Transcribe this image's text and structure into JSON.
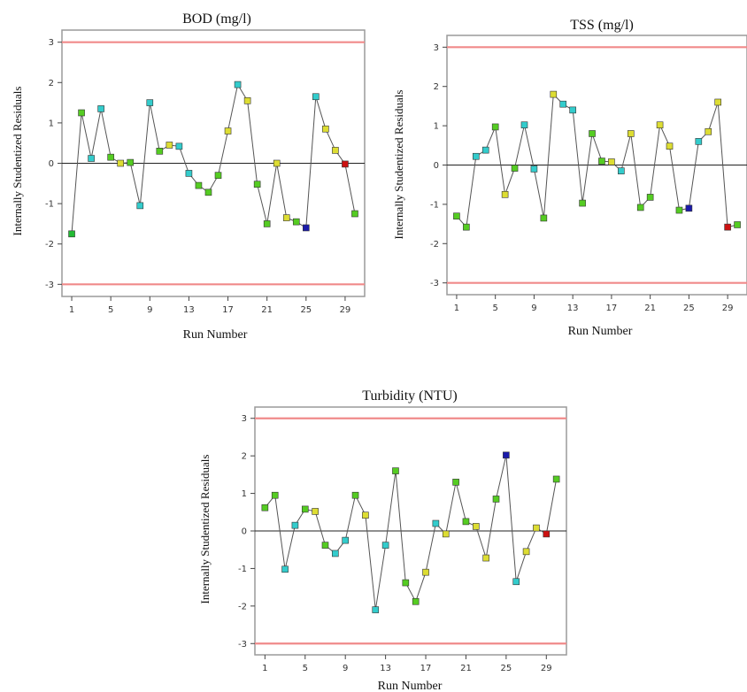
{
  "chart_data": [
    {
      "type": "scatter",
      "title": "BOD (mg/l)",
      "xlabel": "Run Number",
      "ylabel": "Internally Studentized Residuals",
      "xticks": [
        1,
        5,
        9,
        13,
        17,
        21,
        25,
        29
      ],
      "yticks": [
        -3,
        -2,
        -1,
        0,
        1,
        2,
        3
      ],
      "xlim": [
        0,
        31
      ],
      "ylim": [
        -3.3,
        3.3
      ],
      "reference_lines": [
        3,
        -3
      ],
      "x": [
        1,
        2,
        3,
        4,
        5,
        6,
        7,
        8,
        9,
        10,
        11,
        12,
        13,
        14,
        15,
        16,
        17,
        18,
        19,
        20,
        21,
        22,
        23,
        24,
        25,
        26,
        27,
        28,
        29,
        30
      ],
      "y": [
        -1.75,
        1.25,
        0.12,
        1.35,
        0.15,
        0.0,
        0.02,
        -1.05,
        1.5,
        0.3,
        0.45,
        0.42,
        -0.25,
        -0.55,
        -0.72,
        -0.3,
        0.8,
        1.95,
        1.55,
        -0.52,
        -1.5,
        0.0,
        -1.35,
        -1.45,
        -1.6,
        1.65,
        0.85,
        0.32,
        -0.02,
        -1.25
      ],
      "colors": [
        "#22bb33",
        "#55cc22",
        "#33cccc",
        "#33cccc",
        "#55cc22",
        "#dddd33",
        "#55cc22",
        "#33cccc",
        "#33cccc",
        "#55cc22",
        "#dddd33",
        "#33cccc",
        "#33cccc",
        "#55cc22",
        "#55cc22",
        "#55cc22",
        "#dddd33",
        "#33cccc",
        "#dddd33",
        "#55cc22",
        "#55cc22",
        "#dddd33",
        "#dddd33",
        "#55cc22",
        "#1a1aaa",
        "#33cccc",
        "#dddd33",
        "#dddd33",
        "#cc1111",
        "#55cc22"
      ]
    },
    {
      "type": "scatter",
      "title": "TSS (mg/l)",
      "xlabel": "Run Number",
      "ylabel": "Internally Studentized Residuals",
      "xticks": [
        1,
        5,
        9,
        13,
        17,
        21,
        25,
        29
      ],
      "yticks": [
        -3,
        -2,
        -1,
        0,
        1,
        2,
        3
      ],
      "xlim": [
        0,
        31
      ],
      "ylim": [
        -3.3,
        3.3
      ],
      "reference_lines": [
        3,
        -3
      ],
      "x": [
        1,
        2,
        3,
        4,
        5,
        6,
        7,
        8,
        9,
        10,
        11,
        12,
        13,
        14,
        15,
        16,
        17,
        18,
        19,
        20,
        21,
        22,
        23,
        24,
        25,
        26,
        27,
        28,
        29,
        30
      ],
      "y": [
        -1.3,
        -1.58,
        0.22,
        0.38,
        0.97,
        -0.75,
        -0.08,
        1.02,
        -0.1,
        -1.35,
        1.8,
        1.55,
        1.4,
        -0.97,
        0.8,
        0.1,
        0.08,
        -0.15,
        0.8,
        -1.08,
        -0.82,
        1.02,
        0.48,
        -1.15,
        -1.1,
        0.6,
        0.85,
        1.6,
        -1.58,
        -1.52
      ],
      "colors": [
        "#55cc22",
        "#55cc22",
        "#33cccc",
        "#33cccc",
        "#55cc22",
        "#dddd33",
        "#55cc22",
        "#33cccc",
        "#33cccc",
        "#55cc22",
        "#dddd33",
        "#33cccc",
        "#33cccc",
        "#55cc22",
        "#55cc22",
        "#55cc22",
        "#dddd33",
        "#33cccc",
        "#dddd33",
        "#55cc22",
        "#55cc22",
        "#dddd33",
        "#dddd33",
        "#55cc22",
        "#1a1aaa",
        "#33cccc",
        "#dddd33",
        "#dddd33",
        "#cc1111",
        "#55cc22"
      ]
    },
    {
      "type": "scatter",
      "title": "Turbidity (NTU)",
      "xlabel": "Run Number",
      "ylabel": "Internally Studentized Residuals",
      "xticks": [
        1,
        5,
        9,
        13,
        17,
        21,
        25,
        29
      ],
      "yticks": [
        -3,
        -2,
        -1,
        0,
        1,
        2,
        3
      ],
      "xlim": [
        0,
        31
      ],
      "ylim": [
        -3.3,
        3.3
      ],
      "reference_lines": [
        3,
        -3
      ],
      "x": [
        1,
        2,
        3,
        4,
        5,
        6,
        7,
        8,
        9,
        10,
        11,
        12,
        13,
        14,
        15,
        16,
        17,
        18,
        19,
        20,
        21,
        22,
        23,
        24,
        25,
        26,
        27,
        28,
        29,
        30
      ],
      "y": [
        0.62,
        0.95,
        -1.02,
        0.15,
        0.58,
        0.52,
        -0.38,
        -0.6,
        -0.25,
        0.95,
        0.42,
        -2.1,
        -0.38,
        1.6,
        -1.38,
        -1.88,
        -1.1,
        0.2,
        -0.08,
        1.3,
        0.25,
        0.12,
        -0.72,
        0.85,
        2.02,
        -1.35,
        -0.55,
        0.08,
        -0.08,
        1.38
      ],
      "colors": [
        "#55cc22",
        "#55cc22",
        "#33cccc",
        "#33cccc",
        "#55cc22",
        "#dddd33",
        "#55cc22",
        "#33cccc",
        "#33cccc",
        "#55cc22",
        "#dddd33",
        "#33cccc",
        "#33cccc",
        "#55cc22",
        "#55cc22",
        "#55cc22",
        "#dddd33",
        "#33cccc",
        "#dddd33",
        "#55cc22",
        "#55cc22",
        "#dddd33",
        "#dddd33",
        "#55cc22",
        "#1a1aaa",
        "#33cccc",
        "#dddd33",
        "#dddd33",
        "#cc1111",
        "#55cc22"
      ]
    }
  ]
}
